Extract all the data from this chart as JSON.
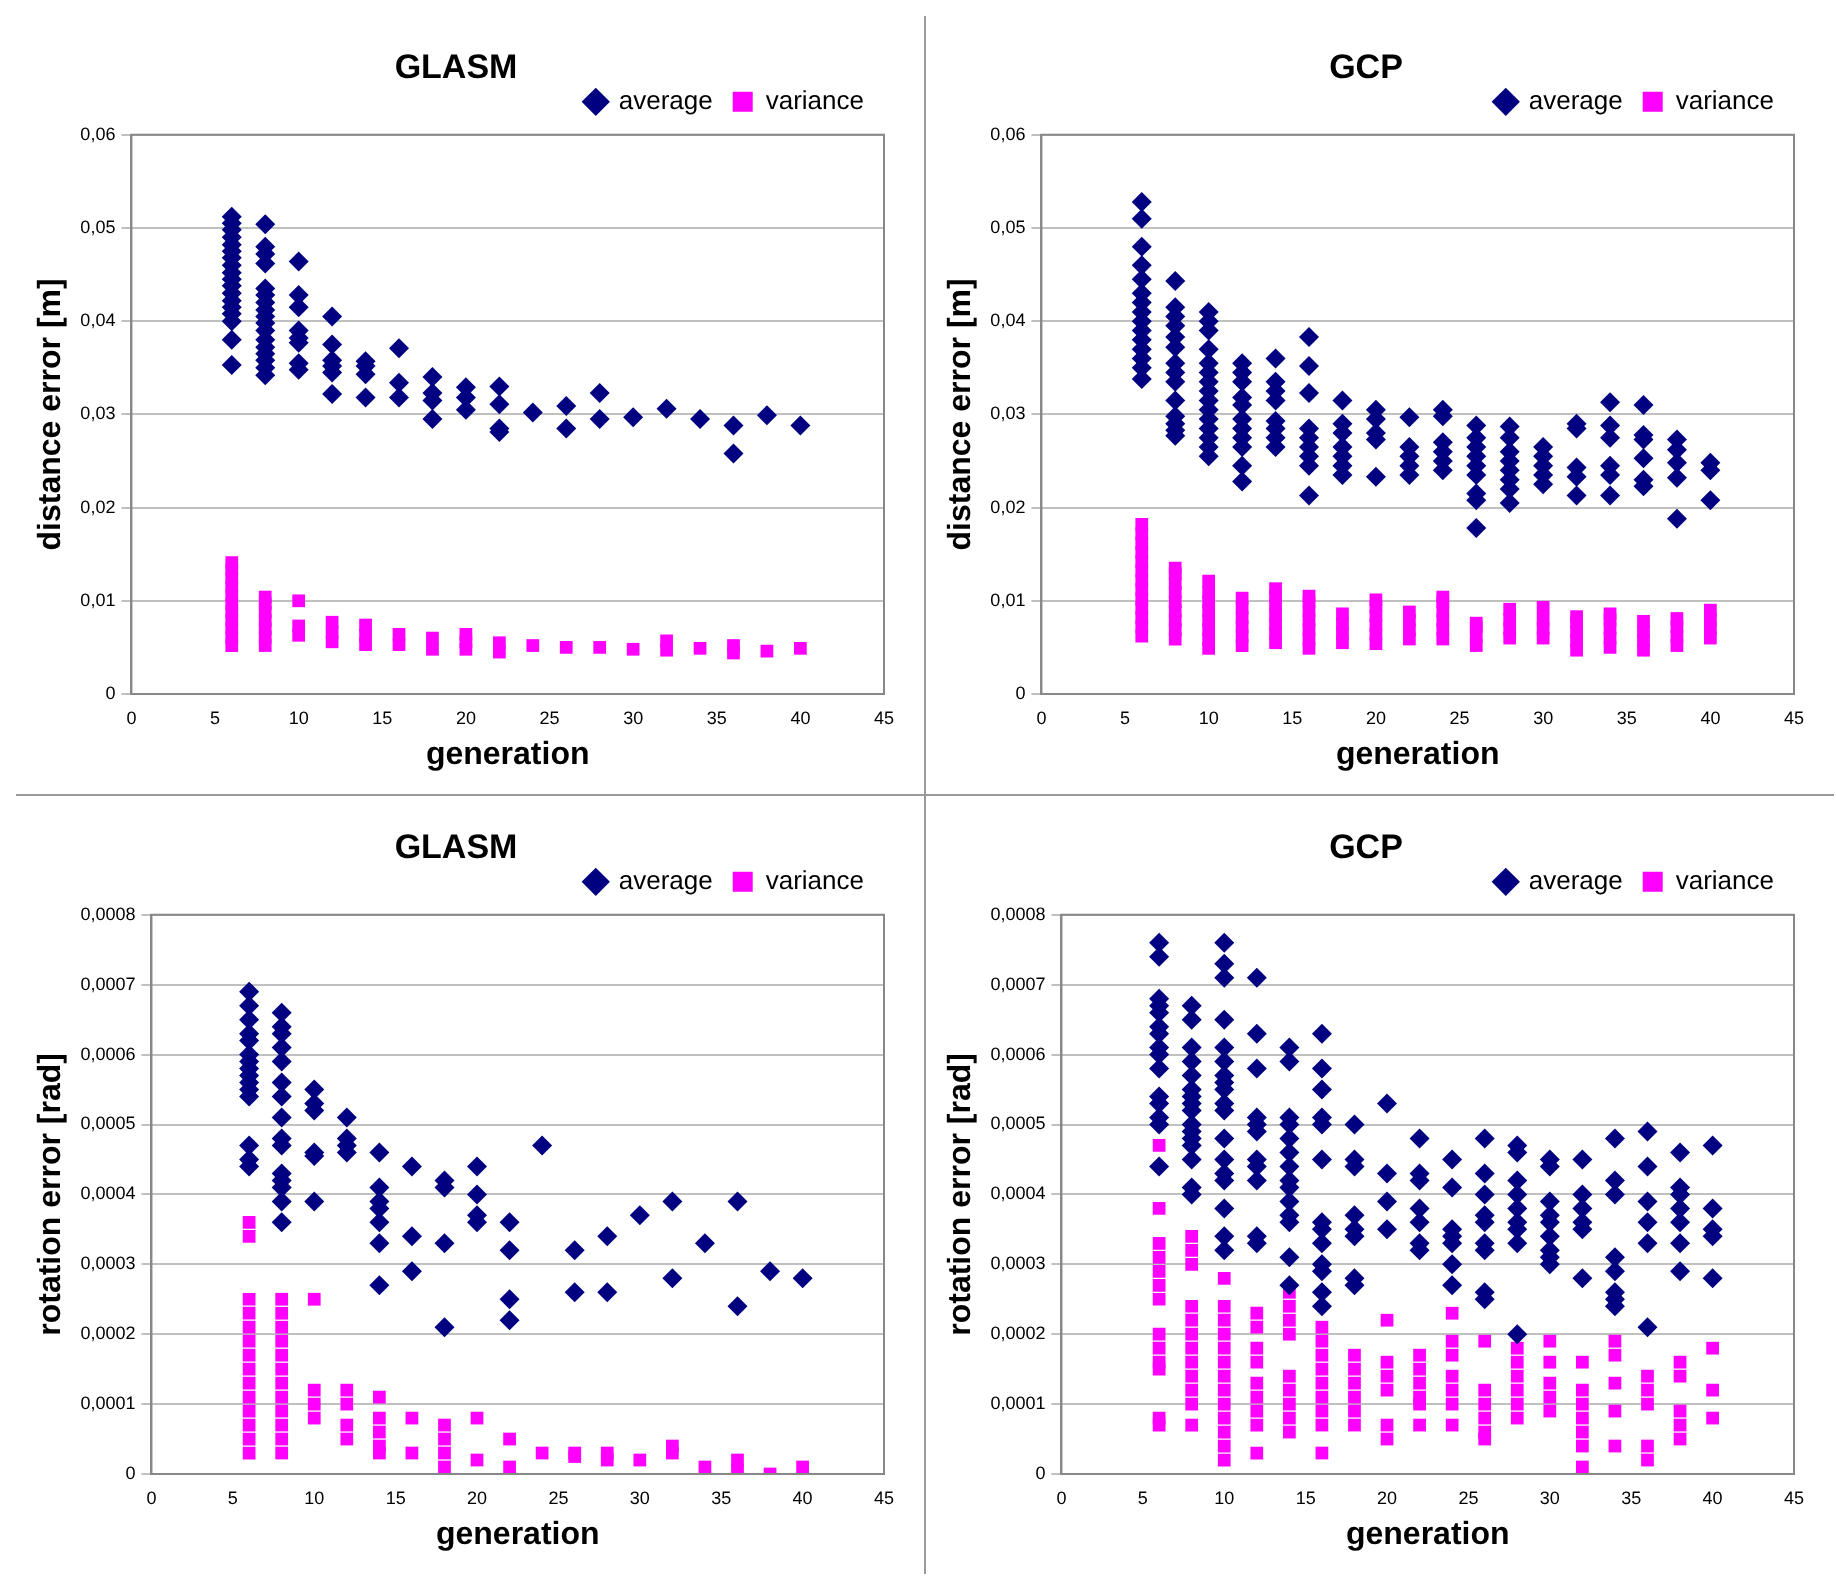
{
  "chart_data": [
    {
      "type": "scatter",
      "title": "GLASM",
      "xlabel": "generation",
      "ylabel": "distance error [m]",
      "xlim": [
        0,
        45
      ],
      "xticks": [
        0,
        5,
        10,
        15,
        20,
        25,
        30,
        35,
        40,
        45
      ],
      "ylim": [
        0,
        0.06
      ],
      "yticks": [
        {
          "value": 0,
          "label": "0"
        },
        {
          "value": 0.01,
          "label": "0,01"
        },
        {
          "value": 0.02,
          "label": "0,02"
        },
        {
          "value": 0.03,
          "label": "0,03"
        },
        {
          "value": 0.04,
          "label": "0,04"
        },
        {
          "value": 0.05,
          "label": "0,05"
        },
        {
          "value": 0.06,
          "label": "0,06"
        }
      ],
      "grid": "y",
      "legend": "top right",
      "series": [
        {
          "name": "average",
          "color": "#000080",
          "marker": "diamond",
          "x": [
            6,
            6,
            6,
            6,
            6,
            6,
            6,
            6,
            6,
            6,
            6,
            6,
            6,
            6,
            6,
            6,
            6,
            6,
            8,
            8,
            8,
            8,
            8,
            8,
            8,
            8,
            8,
            8,
            8,
            8,
            8,
            8,
            8,
            8,
            8,
            10,
            10,
            10,
            10,
            10,
            10,
            10,
            10,
            12,
            12,
            12,
            12,
            12,
            12,
            14,
            14,
            14,
            14,
            16,
            16,
            16,
            18,
            18,
            18,
            18,
            20,
            20,
            20,
            22,
            22,
            22,
            22,
            24,
            26,
            26,
            28,
            28,
            30,
            32,
            34,
            36,
            36,
            38,
            40
          ],
          "values": [
            0.0512,
            0.0505,
            0.0498,
            0.049,
            0.0482,
            0.0475,
            0.0468,
            0.046,
            0.0452,
            0.0445,
            0.0438,
            0.043,
            0.0422,
            0.0415,
            0.0408,
            0.04,
            0.038,
            0.0353,
            0.0504,
            0.048,
            0.0472,
            0.0462,
            0.0435,
            0.0428,
            0.042,
            0.0412,
            0.0405,
            0.0398,
            0.039,
            0.038,
            0.0372,
            0.0365,
            0.0358,
            0.035,
            0.0342,
            0.0464,
            0.0428,
            0.0415,
            0.039,
            0.0382,
            0.0377,
            0.0355,
            0.0348,
            0.0405,
            0.0375,
            0.0358,
            0.0352,
            0.0345,
            0.0322,
            0.0357,
            0.0352,
            0.0343,
            0.0318,
            0.0371,
            0.0334,
            0.0318,
            0.034,
            0.0323,
            0.0315,
            0.0295,
            0.0329,
            0.0318,
            0.0305,
            0.033,
            0.0311,
            0.0285,
            0.0281,
            0.0302,
            0.0309,
            0.0285,
            0.0323,
            0.0295,
            0.0297,
            0.0306,
            0.0295,
            0.0288,
            0.0258,
            0.0299,
            0.0288
          ]
        },
        {
          "name": "variance",
          "color": "#ff00ff",
          "marker": "square",
          "x": [
            6,
            6,
            6,
            6,
            6,
            6,
            6,
            6,
            6,
            6,
            6,
            8,
            8,
            8,
            8,
            8,
            8,
            8,
            10,
            10,
            10,
            12,
            12,
            12,
            14,
            14,
            14,
            16,
            16,
            18,
            18,
            20,
            20,
            20,
            22,
            22,
            24,
            26,
            28,
            30,
            32,
            32,
            34,
            36,
            36,
            38,
            40
          ],
          "values": [
            0.0052,
            0.0061,
            0.007,
            0.0079,
            0.0088,
            0.0097,
            0.0106,
            0.0115,
            0.0124,
            0.0133,
            0.0141,
            0.0052,
            0.0061,
            0.007,
            0.0079,
            0.0088,
            0.0097,
            0.0104,
            0.01,
            0.0073,
            0.0063,
            0.0056,
            0.0066,
            0.0077,
            0.0053,
            0.0063,
            0.0074,
            0.0053,
            0.0064,
            0.0048,
            0.006,
            0.0048,
            0.0056,
            0.0064,
            0.0045,
            0.0055,
            0.0052,
            0.005,
            0.005,
            0.0048,
            0.0047,
            0.0057,
            0.0049,
            0.0044,
            0.0052,
            0.0046,
            0.0049
          ]
        }
      ]
    },
    {
      "type": "scatter",
      "title": "GCP",
      "xlabel": "generation",
      "ylabel": "distance error [m]",
      "xlim": [
        0,
        45
      ],
      "xticks": [
        0,
        5,
        10,
        15,
        20,
        25,
        30,
        35,
        40,
        45
      ],
      "ylim": [
        0,
        0.06
      ],
      "yticks": [
        {
          "value": 0,
          "label": "0"
        },
        {
          "value": 0.01,
          "label": "0,01"
        },
        {
          "value": 0.02,
          "label": "0,02"
        },
        {
          "value": 0.03,
          "label": "0,03"
        },
        {
          "value": 0.04,
          "label": "0,04"
        },
        {
          "value": 0.05,
          "label": "0,05"
        },
        {
          "value": 0.06,
          "label": "0,06"
        }
      ],
      "grid": "y",
      "legend": "top right",
      "series": [
        {
          "name": "average",
          "color": "#000080",
          "marker": "diamond",
          "x": [
            6,
            6,
            6,
            6,
            6,
            6,
            6,
            6,
            6,
            6,
            6,
            6,
            6,
            6,
            6,
            8,
            8,
            8,
            8,
            8,
            8,
            8,
            8,
            8,
            8,
            8,
            8,
            8,
            8,
            10,
            10,
            10,
            10,
            10,
            10,
            10,
            10,
            10,
            10,
            10,
            10,
            10,
            10,
            10,
            12,
            12,
            12,
            12,
            12,
            12,
            12,
            12,
            12,
            12,
            12,
            14,
            14,
            14,
            14,
            14,
            14,
            14,
            14,
            16,
            16,
            16,
            16,
            16,
            16,
            16,
            16,
            16,
            18,
            18,
            18,
            18,
            18,
            18,
            18,
            20,
            20,
            20,
            20,
            20,
            22,
            22,
            22,
            22,
            22,
            24,
            24,
            24,
            24,
            24,
            24,
            26,
            26,
            26,
            26,
            26,
            26,
            26,
            26,
            26,
            28,
            28,
            28,
            28,
            28,
            28,
            28,
            28,
            30,
            30,
            30,
            30,
            30,
            32,
            32,
            32,
            32,
            32,
            34,
            34,
            34,
            34,
            34,
            34,
            36,
            36,
            36,
            36,
            36,
            36,
            38,
            38,
            38,
            38,
            38,
            40,
            40,
            40
          ],
          "values": [
            0.0528,
            0.051,
            0.048,
            0.046,
            0.0445,
            0.043,
            0.042,
            0.041,
            0.04,
            0.039,
            0.038,
            0.037,
            0.036,
            0.035,
            0.0338,
            0.0443,
            0.0415,
            0.0405,
            0.0395,
            0.0383,
            0.0372,
            0.0355,
            0.0345,
            0.0335,
            0.0315,
            0.0298,
            0.029,
            0.0283,
            0.0277,
            0.041,
            0.04,
            0.039,
            0.037,
            0.0355,
            0.0345,
            0.0335,
            0.0325,
            0.0315,
            0.0305,
            0.0295,
            0.0285,
            0.0275,
            0.0265,
            0.0255,
            0.0355,
            0.0345,
            0.0335,
            0.0318,
            0.031,
            0.0295,
            0.0285,
            0.0275,
            0.0265,
            0.0245,
            0.0228,
            0.036,
            0.0335,
            0.0325,
            0.0315,
            0.0293,
            0.0285,
            0.0275,
            0.0265,
            0.0383,
            0.0352,
            0.0323,
            0.0285,
            0.0275,
            0.0265,
            0.0255,
            0.0245,
            0.0213,
            0.0315,
            0.029,
            0.028,
            0.0265,
            0.0255,
            0.0245,
            0.0235,
            0.0305,
            0.0295,
            0.028,
            0.0273,
            0.0233,
            0.0297,
            0.0265,
            0.0255,
            0.0245,
            0.0235,
            0.0305,
            0.0298,
            0.027,
            0.026,
            0.025,
            0.024,
            0.0288,
            0.0275,
            0.0265,
            0.0255,
            0.0245,
            0.0235,
            0.0215,
            0.0208,
            0.0178,
            0.0287,
            0.0275,
            0.026,
            0.025,
            0.024,
            0.023,
            0.022,
            0.0205,
            0.0265,
            0.0255,
            0.0245,
            0.0235,
            0.0225,
            0.029,
            0.0285,
            0.0243,
            0.0233,
            0.0213,
            0.0313,
            0.0288,
            0.0275,
            0.0245,
            0.0235,
            0.0213,
            0.031,
            0.0278,
            0.0273,
            0.0253,
            0.023,
            0.0223,
            0.0273,
            0.0262,
            0.0248,
            0.0232,
            0.0188,
            0.0248,
            0.024,
            0.0208
          ]
        },
        {
          "name": "variance",
          "color": "#ff00ff",
          "marker": "square",
          "x": [
            6,
            6,
            6,
            6,
            6,
            6,
            6,
            6,
            6,
            6,
            6,
            6,
            6,
            8,
            8,
            8,
            8,
            8,
            8,
            8,
            8,
            8,
            10,
            10,
            10,
            10,
            10,
            10,
            10,
            10,
            12,
            12,
            12,
            12,
            12,
            12,
            14,
            14,
            14,
            14,
            14,
            14,
            14,
            16,
            16,
            16,
            16,
            16,
            16,
            16,
            18,
            18,
            18,
            18,
            20,
            20,
            20,
            20,
            20,
            20,
            22,
            22,
            22,
            22,
            24,
            24,
            24,
            24,
            24,
            24,
            26,
            26,
            26,
            26,
            28,
            28,
            28,
            28,
            30,
            30,
            30,
            30,
            32,
            32,
            32,
            32,
            32,
            34,
            34,
            34,
            34,
            34,
            36,
            36,
            36,
            36,
            38,
            38,
            38,
            38,
            40,
            40,
            40,
            40
          ],
          "values": [
            0.0062,
            0.0072,
            0.0082,
            0.0092,
            0.0102,
            0.0112,
            0.0122,
            0.0132,
            0.0142,
            0.0152,
            0.0162,
            0.0172,
            0.0182,
            0.0059,
            0.0069,
            0.0079,
            0.0089,
            0.0099,
            0.0109,
            0.0119,
            0.0129,
            0.0135,
            0.0049,
            0.0059,
            0.0069,
            0.0079,
            0.0089,
            0.0099,
            0.0109,
            0.0121,
            0.0052,
            0.0062,
            0.0072,
            0.0082,
            0.0092,
            0.0103,
            0.0055,
            0.0065,
            0.0075,
            0.0085,
            0.0095,
            0.0105,
            0.0113,
            0.0049,
            0.0059,
            0.0069,
            0.0079,
            0.0089,
            0.0099,
            0.0105,
            0.0055,
            0.0065,
            0.0075,
            0.0086,
            0.0054,
            0.0064,
            0.0074,
            0.0084,
            0.0094,
            0.0101,
            0.0059,
            0.0069,
            0.0079,
            0.0088,
            0.0059,
            0.0069,
            0.0079,
            0.0089,
            0.0099,
            0.0104,
            0.0052,
            0.0062,
            0.0072,
            0.0076,
            0.006,
            0.007,
            0.008,
            0.0091,
            0.006,
            0.007,
            0.008,
            0.0093,
            0.0047,
            0.0057,
            0.0067,
            0.0077,
            0.0083,
            0.005,
            0.006,
            0.007,
            0.008,
            0.0086,
            0.0047,
            0.0057,
            0.0067,
            0.0078,
            0.0052,
            0.0062,
            0.0072,
            0.0081,
            0.006,
            0.007,
            0.008,
            0.009
          ]
        }
      ]
    },
    {
      "type": "scatter",
      "title": "GLASM",
      "xlabel": "generation",
      "ylabel": "rotation error [rad]",
      "xlim": [
        0,
        45
      ],
      "xticks": [
        0,
        5,
        10,
        15,
        20,
        25,
        30,
        35,
        40,
        45
      ],
      "ylim": [
        0,
        0.0008
      ],
      "yticks": [
        {
          "value": 0,
          "label": "0"
        },
        {
          "value": 0.0001,
          "label": "0,0001"
        },
        {
          "value": 0.0002,
          "label": "0,0002"
        },
        {
          "value": 0.0003,
          "label": "0,0003"
        },
        {
          "value": 0.0004,
          "label": "0,0004"
        },
        {
          "value": 0.0005,
          "label": "0,0005"
        },
        {
          "value": 0.0006,
          "label": "0,0006"
        },
        {
          "value": 0.0007,
          "label": "0,0007"
        },
        {
          "value": 0.0008,
          "label": "0,0008"
        }
      ],
      "grid": "y",
      "legend": "top right",
      "series": [
        {
          "name": "average",
          "color": "#000080",
          "marker": "diamond",
          "x": [
            6,
            6,
            6,
            6,
            6,
            6,
            6,
            6,
            6,
            6,
            6,
            6,
            6,
            6,
            6,
            8,
            8,
            8,
            8,
            8,
            8,
            8,
            8,
            8,
            8,
            8,
            8,
            8,
            8,
            8,
            10,
            10,
            10,
            10,
            10,
            10,
            12,
            12,
            12,
            12,
            14,
            14,
            14,
            14,
            14,
            14,
            14,
            16,
            16,
            16,
            18,
            18,
            18,
            18,
            20,
            20,
            20,
            20,
            22,
            22,
            22,
            22,
            24,
            26,
            26,
            28,
            28,
            30,
            32,
            32,
            34,
            36,
            36,
            38,
            40
          ],
          "values": [
            0.00069,
            0.00067,
            0.00065,
            0.00063,
            0.00062,
            0.0006,
            0.00059,
            0.00058,
            0.00057,
            0.00056,
            0.00055,
            0.00054,
            0.00047,
            0.00045,
            0.00044,
            0.00066,
            0.00064,
            0.00063,
            0.00061,
            0.00059,
            0.00056,
            0.00054,
            0.00051,
            0.00048,
            0.00047,
            0.00043,
            0.00042,
            0.00041,
            0.00039,
            0.00036,
            0.00055,
            0.00053,
            0.00052,
            0.00046,
            0.000455,
            0.00039,
            0.00051,
            0.00048,
            0.00047,
            0.00046,
            0.00046,
            0.00041,
            0.00039,
            0.00038,
            0.00036,
            0.00033,
            0.00027,
            0.00044,
            0.00034,
            0.00029,
            0.00042,
            0.00041,
            0.00033,
            0.00021,
            0.00044,
            0.0004,
            0.00037,
            0.00036,
            0.00036,
            0.00032,
            0.00025,
            0.00022,
            0.00047,
            0.00032,
            0.00026,
            0.00034,
            0.00026,
            0.00037,
            0.00039,
            0.00028,
            0.00033,
            0.00039,
            0.00024,
            0.00029,
            0.00028
          ]
        },
        {
          "name": "variance",
          "color": "#ff00ff",
          "marker": "square",
          "x": [
            6,
            6,
            6,
            6,
            6,
            6,
            6,
            6,
            6,
            6,
            6,
            6,
            6,
            6,
            8,
            8,
            8,
            8,
            8,
            8,
            8,
            8,
            8,
            8,
            8,
            8,
            10,
            10,
            10,
            10,
            12,
            12,
            12,
            12,
            14,
            14,
            14,
            14,
            14,
            16,
            16,
            18,
            18,
            18,
            18,
            20,
            20,
            22,
            22,
            24,
            26,
            26,
            28,
            28,
            30,
            32,
            32,
            34,
            36,
            36,
            38,
            40
          ],
          "values": [
            0.00036,
            0.00034,
            0.00025,
            0.00023,
            0.00021,
            0.00019,
            0.00017,
            0.00015,
            0.00013,
            0.00011,
            9e-05,
            7e-05,
            5e-05,
            3e-05,
            0.00025,
            0.00023,
            0.00021,
            0.00019,
            0.00017,
            0.00015,
            0.00013,
            0.00011,
            9e-05,
            7e-05,
            5e-05,
            3e-05,
            0.00025,
            0.00012,
            0.0001,
            8e-05,
            0.00012,
            0.0001,
            7e-05,
            5e-05,
            0.00011,
            8e-05,
            6e-05,
            4e-05,
            3e-05,
            8e-05,
            3e-05,
            7e-05,
            5e-05,
            3e-05,
            1e-05,
            8e-05,
            2e-05,
            5e-05,
            1e-05,
            3e-05,
            3e-05,
            2.5e-05,
            3e-05,
            2e-05,
            2e-05,
            4e-05,
            3e-05,
            1e-05,
            2e-05,
            5e-06,
            0,
            1e-05
          ]
        }
      ]
    },
    {
      "type": "scatter",
      "title": "GCP",
      "xlabel": "generation",
      "ylabel": "rotation error [rad]",
      "xlim": [
        0,
        45
      ],
      "xticks": [
        0,
        5,
        10,
        15,
        20,
        25,
        30,
        35,
        40,
        45
      ],
      "ylim": [
        0,
        0.0008
      ],
      "yticks": [
        {
          "value": 0,
          "label": "0"
        },
        {
          "value": 0.0001,
          "label": "0,0001"
        },
        {
          "value": 0.0002,
          "label": "0,0002"
        },
        {
          "value": 0.0003,
          "label": "0,0003"
        },
        {
          "value": 0.0004,
          "label": "0,0004"
        },
        {
          "value": 0.0005,
          "label": "0,0005"
        },
        {
          "value": 0.0006,
          "label": "0,0006"
        },
        {
          "value": 0.0007,
          "label": "0,0007"
        },
        {
          "value": 0.0008,
          "label": "0,0008"
        }
      ],
      "grid": "y",
      "legend": "top right",
      "series": [
        {
          "name": "average",
          "color": "#000080",
          "marker": "diamond",
          "x": [
            6,
            6,
            6,
            6,
            6,
            6,
            6,
            6,
            6,
            6,
            6,
            6,
            6,
            6,
            6,
            8,
            8,
            8,
            8,
            8,
            8,
            8,
            8,
            8,
            8,
            8,
            8,
            8,
            8,
            8,
            8,
            10,
            10,
            10,
            10,
            10,
            10,
            10,
            10,
            10,
            10,
            10,
            10,
            10,
            10,
            10,
            10,
            10,
            10,
            12,
            12,
            12,
            12,
            12,
            12,
            12,
            12,
            12,
            12,
            12,
            14,
            14,
            14,
            14,
            14,
            14,
            14,
            14,
            14,
            14,
            14,
            14,
            14,
            14,
            16,
            16,
            16,
            16,
            16,
            16,
            16,
            16,
            16,
            16,
            16,
            16,
            16,
            18,
            18,
            18,
            18,
            18,
            18,
            18,
            18,
            20,
            20,
            20,
            20,
            22,
            22,
            22,
            22,
            22,
            22,
            22,
            24,
            24,
            24,
            24,
            24,
            24,
            24,
            26,
            26,
            26,
            26,
            26,
            26,
            26,
            26,
            26,
            28,
            28,
            28,
            28,
            28,
            28,
            28,
            28,
            28,
            30,
            30,
            30,
            30,
            30,
            30,
            30,
            30,
            30,
            32,
            32,
            32,
            32,
            32,
            32,
            34,
            34,
            34,
            34,
            34,
            34,
            34,
            34,
            36,
            36,
            36,
            36,
            36,
            36,
            38,
            38,
            38,
            38,
            38,
            38,
            38,
            40,
            40,
            40,
            40,
            40
          ],
          "values": [
            0.00076,
            0.00074,
            0.00068,
            0.00067,
            0.00066,
            0.00064,
            0.00063,
            0.00061,
            0.0006,
            0.00058,
            0.00054,
            0.00053,
            0.00051,
            0.0005,
            0.00044,
            0.00067,
            0.00065,
            0.00061,
            0.00059,
            0.00057,
            0.00055,
            0.00054,
            0.00053,
            0.00052,
            0.0005,
            0.00049,
            0.00048,
            0.00047,
            0.00045,
            0.00041,
            0.0004,
            0.00076,
            0.00073,
            0.00071,
            0.00065,
            0.00061,
            0.00059,
            0.00057,
            0.00056,
            0.00055,
            0.00053,
            0.00052,
            0.00048,
            0.00045,
            0.00043,
            0.00042,
            0.00038,
            0.00034,
            0.00032,
            0.00071,
            0.00063,
            0.00058,
            0.00051,
            0.0005,
            0.00049,
            0.00045,
            0.00044,
            0.00042,
            0.00034,
            0.00033,
            0.00061,
            0.00059,
            0.00051,
            0.0005,
            0.00048,
            0.00046,
            0.00044,
            0.00042,
            0.00041,
            0.00039,
            0.00037,
            0.00036,
            0.00031,
            0.00027,
            0.00063,
            0.00058,
            0.00055,
            0.00051,
            0.0005,
            0.00045,
            0.00036,
            0.00035,
            0.00033,
            0.0003,
            0.00029,
            0.00026,
            0.00024,
            0.0005,
            0.00045,
            0.00044,
            0.00037,
            0.00035,
            0.00034,
            0.00028,
            0.00027,
            0.00053,
            0.00043,
            0.00039,
            0.00035,
            0.00048,
            0.00043,
            0.00042,
            0.00038,
            0.00036,
            0.00033,
            0.00032,
            0.00045,
            0.00041,
            0.00035,
            0.00034,
            0.00033,
            0.0003,
            0.00027,
            0.00048,
            0.00043,
            0.0004,
            0.00037,
            0.00036,
            0.00033,
            0.00032,
            0.00026,
            0.00025,
            0.00047,
            0.00046,
            0.00042,
            0.0004,
            0.00038,
            0.00036,
            0.00035,
            0.00033,
            0.0002,
            0.00045,
            0.00044,
            0.00039,
            0.00037,
            0.00036,
            0.00034,
            0.00032,
            0.00031,
            0.0003,
            0.00045,
            0.0004,
            0.00038,
            0.00036,
            0.00035,
            0.00028,
            0.00048,
            0.00042,
            0.0004,
            0.00031,
            0.00029,
            0.00026,
            0.00025,
            0.00024,
            0.00049,
            0.00044,
            0.00039,
            0.00036,
            0.00033,
            0.00021,
            0.00046,
            0.00041,
            0.0004,
            0.00038,
            0.00036,
            0.00033,
            0.00029,
            0.00047,
            0.00038,
            0.00035,
            0.00034,
            0.00028
          ]
        },
        {
          "name": "variance",
          "color": "#ff00ff",
          "marker": "square",
          "x": [
            6,
            6,
            6,
            6,
            6,
            6,
            6,
            6,
            6,
            6,
            6,
            6,
            6,
            8,
            8,
            8,
            8,
            8,
            8,
            8,
            8,
            8,
            8,
            8,
            8,
            10,
            10,
            10,
            10,
            10,
            10,
            10,
            10,
            10,
            10,
            10,
            10,
            10,
            12,
            12,
            12,
            12,
            12,
            12,
            12,
            12,
            12,
            14,
            14,
            14,
            14,
            14,
            14,
            14,
            14,
            14,
            16,
            16,
            16,
            16,
            16,
            16,
            16,
            16,
            16,
            18,
            18,
            18,
            18,
            18,
            18,
            20,
            20,
            20,
            20,
            20,
            20,
            22,
            22,
            22,
            22,
            22,
            22,
            24,
            24,
            24,
            24,
            24,
            24,
            24,
            26,
            26,
            26,
            26,
            26,
            26,
            28,
            28,
            28,
            28,
            28,
            28,
            30,
            30,
            30,
            30,
            30,
            32,
            32,
            32,
            32,
            32,
            32,
            32,
            34,
            34,
            34,
            34,
            34,
            36,
            36,
            36,
            36,
            36,
            38,
            38,
            38,
            38,
            38,
            40,
            40,
            40
          ],
          "values": [
            0.00047,
            0.00038,
            0.00033,
            0.00031,
            0.00029,
            0.00027,
            0.00025,
            0.0002,
            0.00018,
            0.00016,
            0.00015,
            8e-05,
            7e-05,
            0.00034,
            0.00032,
            0.0003,
            0.00024,
            0.00022,
            0.0002,
            0.00018,
            0.00016,
            0.00014,
            0.00012,
            0.0001,
            7e-05,
            0.00028,
            0.00024,
            0.00022,
            0.0002,
            0.00018,
            0.00016,
            0.00014,
            0.00012,
            0.0001,
            8e-05,
            6e-05,
            4e-05,
            2e-05,
            0.00023,
            0.00021,
            0.00018,
            0.00016,
            0.00013,
            0.00011,
            9e-05,
            7e-05,
            3e-05,
            0.00026,
            0.00024,
            0.00022,
            0.0002,
            0.00014,
            0.00012,
            0.0001,
            8e-05,
            6e-05,
            0.00021,
            0.00019,
            0.00017,
            0.00015,
            0.00013,
            0.00011,
            9e-05,
            7e-05,
            3e-05,
            0.00017,
            0.00015,
            0.00013,
            0.00011,
            9e-05,
            7e-05,
            0.00022,
            0.00016,
            0.00014,
            0.00012,
            7e-05,
            5e-05,
            0.00017,
            0.00015,
            0.00013,
            0.00011,
            0.0001,
            7e-05,
            0.00023,
            0.00019,
            0.00017,
            0.00014,
            0.00012,
            0.0001,
            7e-05,
            0.00019,
            0.00012,
            0.0001,
            8e-05,
            6e-05,
            5e-05,
            0.00018,
            0.00016,
            0.00014,
            0.00012,
            0.0001,
            8e-05,
            0.00019,
            0.00016,
            0.00013,
            0.00011,
            9e-05,
            0.00016,
            0.00012,
            0.0001,
            8e-05,
            6e-05,
            4e-05,
            1e-05,
            0.00019,
            0.00017,
            0.00013,
            9e-05,
            4e-05,
            0.00014,
            0.00012,
            0.0001,
            4e-05,
            2e-05,
            0.00016,
            0.00014,
            9e-05,
            7e-05,
            5e-05,
            0.00018,
            0.00012,
            8e-05
          ]
        }
      ]
    }
  ]
}
